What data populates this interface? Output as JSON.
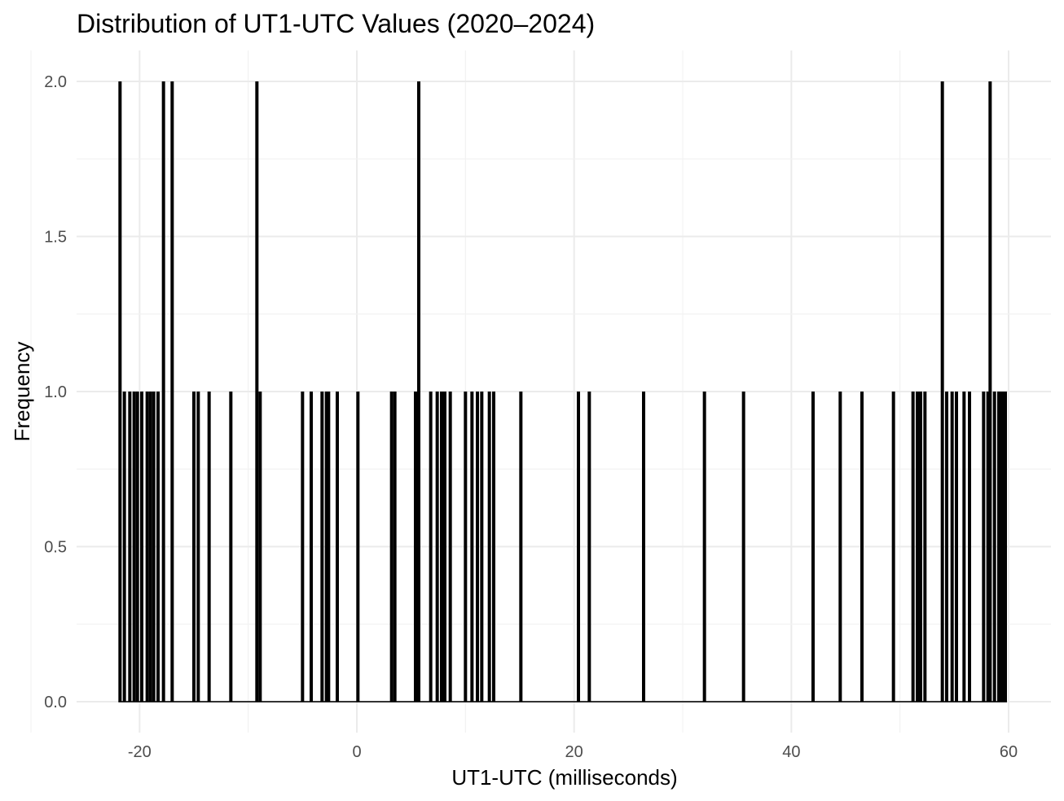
{
  "chart_data": {
    "type": "bar",
    "subtype": "histogram",
    "title": "Distribution of UT1-UTC Values (2020–2024)",
    "xlabel": "UT1-UTC (milliseconds)",
    "ylabel": "Frequency",
    "xlim": [
      -25,
      63
    ],
    "ylim": [
      -0.08,
      2.1
    ],
    "x_ticks": [
      -20,
      0,
      20,
      40,
      60
    ],
    "x_tick_labels": [
      "-20",
      "0",
      "20",
      "40",
      "60"
    ],
    "y_ticks": [
      0,
      0.5,
      1,
      1.5,
      2
    ],
    "y_tick_labels": [
      "0.0",
      "0.5",
      "1.0",
      "1.5",
      "2.0"
    ],
    "grid": true,
    "legend": "none",
    "bar_color": "#000000",
    "bars": [
      {
        "x": -21.8,
        "count": 2
      },
      {
        "x": -21.4,
        "count": 1
      },
      {
        "x": -20.9,
        "count": 1
      },
      {
        "x": -20.5,
        "count": 1
      },
      {
        "x": -20.2,
        "count": 1
      },
      {
        "x": -19.8,
        "count": 1
      },
      {
        "x": -19.3,
        "count": 1
      },
      {
        "x": -19.0,
        "count": 1
      },
      {
        "x": -18.7,
        "count": 1
      },
      {
        "x": -18.3,
        "count": 1
      },
      {
        "x": -17.8,
        "count": 2
      },
      {
        "x": -17.0,
        "count": 2
      },
      {
        "x": -15.0,
        "count": 1
      },
      {
        "x": -14.6,
        "count": 1
      },
      {
        "x": -13.6,
        "count": 1
      },
      {
        "x": -11.6,
        "count": 1
      },
      {
        "x": -9.2,
        "count": 2
      },
      {
        "x": -8.9,
        "count": 1
      },
      {
        "x": -5.0,
        "count": 1
      },
      {
        "x": -4.2,
        "count": 1
      },
      {
        "x": -3.2,
        "count": 1
      },
      {
        "x": -2.8,
        "count": 1
      },
      {
        "x": -2.6,
        "count": 1
      },
      {
        "x": -1.8,
        "count": 1
      },
      {
        "x": 0.1,
        "count": 1
      },
      {
        "x": 3.2,
        "count": 1
      },
      {
        "x": 3.5,
        "count": 1
      },
      {
        "x": 5.4,
        "count": 1
      },
      {
        "x": 5.7,
        "count": 2
      },
      {
        "x": 6.8,
        "count": 1
      },
      {
        "x": 7.4,
        "count": 1
      },
      {
        "x": 7.8,
        "count": 1
      },
      {
        "x": 8.1,
        "count": 1
      },
      {
        "x": 8.6,
        "count": 1
      },
      {
        "x": 10.0,
        "count": 1
      },
      {
        "x": 10.6,
        "count": 1
      },
      {
        "x": 11.1,
        "count": 1
      },
      {
        "x": 11.5,
        "count": 1
      },
      {
        "x": 12.2,
        "count": 1
      },
      {
        "x": 12.6,
        "count": 1
      },
      {
        "x": 15.1,
        "count": 1
      },
      {
        "x": 20.4,
        "count": 1
      },
      {
        "x": 21.4,
        "count": 1
      },
      {
        "x": 26.4,
        "count": 1
      },
      {
        "x": 32.0,
        "count": 1
      },
      {
        "x": 35.6,
        "count": 1
      },
      {
        "x": 42.0,
        "count": 1
      },
      {
        "x": 44.5,
        "count": 1
      },
      {
        "x": 46.5,
        "count": 1
      },
      {
        "x": 49.4,
        "count": 1
      },
      {
        "x": 51.2,
        "count": 1
      },
      {
        "x": 51.6,
        "count": 1
      },
      {
        "x": 51.9,
        "count": 1
      },
      {
        "x": 52.3,
        "count": 1
      },
      {
        "x": 53.9,
        "count": 2
      },
      {
        "x": 54.3,
        "count": 1
      },
      {
        "x": 54.8,
        "count": 1
      },
      {
        "x": 55.2,
        "count": 1
      },
      {
        "x": 55.9,
        "count": 1
      },
      {
        "x": 56.4,
        "count": 1
      },
      {
        "x": 57.7,
        "count": 1
      },
      {
        "x": 58.1,
        "count": 1
      },
      {
        "x": 58.3,
        "count": 2
      },
      {
        "x": 58.7,
        "count": 1
      },
      {
        "x": 59.1,
        "count": 1
      },
      {
        "x": 59.4,
        "count": 1
      },
      {
        "x": 59.7,
        "count": 1
      }
    ]
  }
}
